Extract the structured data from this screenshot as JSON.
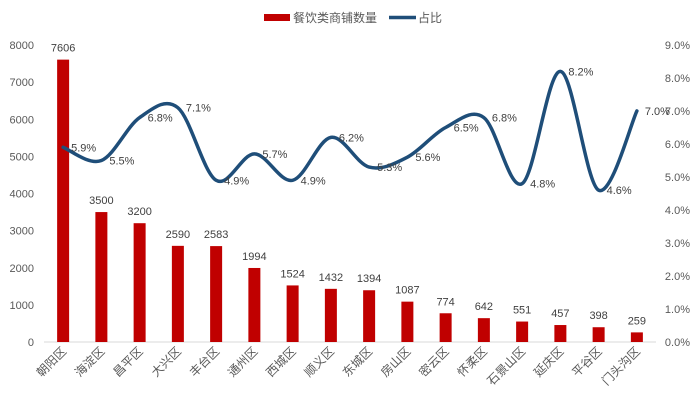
{
  "chart_data": {
    "type": "bar+line",
    "title": "",
    "legend": {
      "position": "top",
      "entries": [
        {
          "name": "餐饮类商铺数量",
          "kind": "bar",
          "color": "#C00000"
        },
        {
          "name": "占比",
          "kind": "line",
          "color": "#1F4E79"
        }
      ]
    },
    "categories": [
      "朝阳区",
      "海淀区",
      "昌平区",
      "大兴区",
      "丰台区",
      "通州区",
      "西城区",
      "顺义区",
      "东城区",
      "房山区",
      "密云区",
      "怀柔区",
      "石景山区",
      "延庆区",
      "平谷区",
      "门头沟区"
    ],
    "series": [
      {
        "name": "餐饮类商铺数量",
        "type": "bar",
        "axis": "left",
        "color": "#C00000",
        "values": [
          7606,
          3500,
          3200,
          2590,
          2583,
          1994,
          1524,
          1432,
          1394,
          1087,
          774,
          642,
          551,
          457,
          398,
          259
        ]
      },
      {
        "name": "占比",
        "type": "line",
        "smooth": true,
        "axis": "right",
        "color": "#1F4E79",
        "values": [
          5.9,
          5.5,
          6.8,
          7.1,
          4.9,
          5.7,
          4.9,
          6.2,
          5.3,
          5.6,
          6.5,
          6.8,
          4.8,
          8.2,
          4.6,
          7.0
        ],
        "labels": [
          "5.9%",
          "5.5%",
          "6.8%",
          "7.1%",
          "4.9%",
          "5.7%",
          "4.9%",
          "6.2%",
          "5.3%",
          "5.6%",
          "6.5%",
          "6.8%",
          "4.8%",
          "8.2%",
          "4.6%",
          "7.0%"
        ]
      }
    ],
    "y_left": {
      "min": 0,
      "max": 8000,
      "step": 1000,
      "ticks": [
        "0",
        "1000",
        "2000",
        "3000",
        "4000",
        "5000",
        "6000",
        "7000",
        "8000"
      ]
    },
    "y_right": {
      "min": 0,
      "max": 9,
      "step": 1,
      "ticks": [
        "0.0%",
        "1.0%",
        "2.0%",
        "3.0%",
        "4.0%",
        "5.0%",
        "6.0%",
        "7.0%",
        "8.0%",
        "9.0%"
      ]
    },
    "xlabel": "",
    "ylabel": "",
    "grid": false
  }
}
